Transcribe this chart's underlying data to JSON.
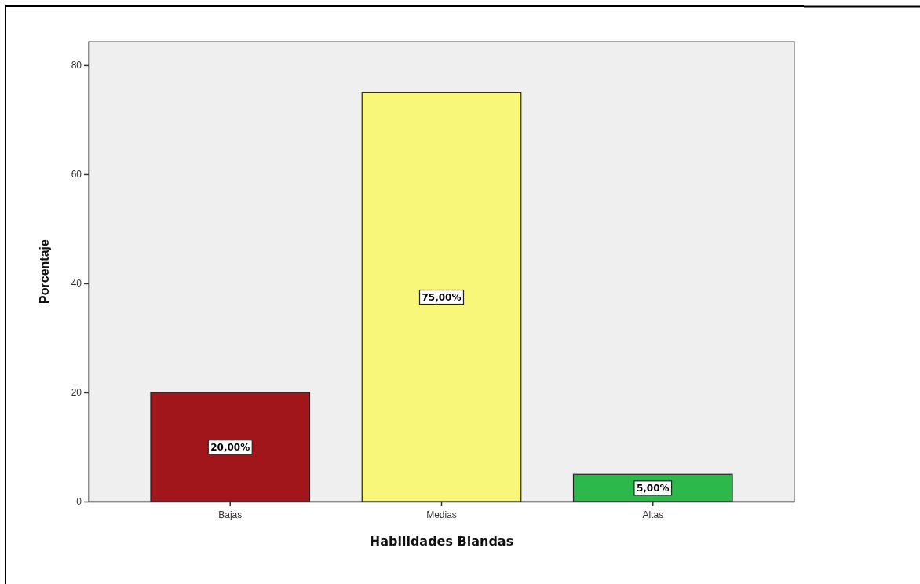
{
  "chart_data": {
    "type": "bar",
    "xlabel": "Habilidades Blandas",
    "ylabel": "Porcentaje",
    "categories": [
      "Bajas",
      "Medias",
      "Altas"
    ],
    "values": [
      20,
      75,
      5
    ],
    "colors": [
      "#a1161a",
      "#f9f77a",
      "#2db84b"
    ],
    "value_labels": [
      "20,00%",
      "75,00%",
      "5,00%"
    ],
    "ylim": [
      0,
      84.3
    ],
    "yticks": [
      0,
      20,
      40,
      60,
      80
    ]
  }
}
